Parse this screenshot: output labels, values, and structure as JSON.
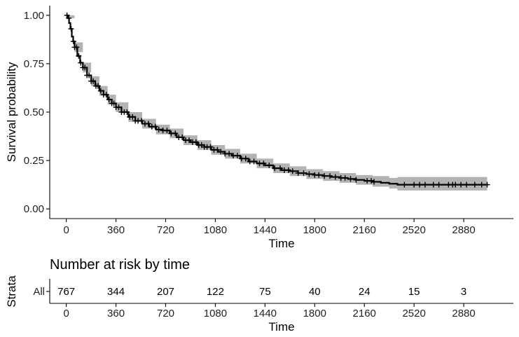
{
  "chart_data": {
    "type": "line",
    "subtype": "kaplan-meier",
    "xlabel": "Time",
    "ylabel": "Survival probability",
    "xlim": [
      -120,
      3240
    ],
    "ylim": [
      -0.05,
      1.05
    ],
    "x_ticks": [
      0,
      360,
      720,
      1080,
      1440,
      1800,
      2160,
      2520,
      2880
    ],
    "y_ticks": [
      0.0,
      0.25,
      0.5,
      0.75,
      1.0
    ],
    "y_tick_labels": [
      "0.00",
      "0.25",
      "0.50",
      "0.75",
      "1.00"
    ],
    "grid": false,
    "legend": "none",
    "line_color": "#000000",
    "ci_color": "#b3b3b3",
    "series": [
      {
        "points": [
          [
            0,
            1.0
          ],
          [
            10,
            0.985
          ],
          [
            20,
            0.96
          ],
          [
            30,
            0.93
          ],
          [
            40,
            0.89
          ],
          [
            50,
            0.865
          ],
          [
            60,
            0.835
          ],
          [
            80,
            0.79
          ],
          [
            100,
            0.755
          ],
          [
            120,
            0.73
          ],
          [
            150,
            0.69
          ],
          [
            180,
            0.66
          ],
          [
            210,
            0.635
          ],
          [
            240,
            0.61
          ],
          [
            270,
            0.59
          ],
          [
            300,
            0.565
          ],
          [
            330,
            0.545
          ],
          [
            360,
            0.525
          ],
          [
            400,
            0.5
          ],
          [
            450,
            0.475
          ],
          [
            500,
            0.455
          ],
          [
            550,
            0.44
          ],
          [
            600,
            0.425
          ],
          [
            650,
            0.41
          ],
          [
            700,
            0.405
          ],
          [
            750,
            0.39
          ],
          [
            800,
            0.37
          ],
          [
            850,
            0.355
          ],
          [
            900,
            0.345
          ],
          [
            950,
            0.33
          ],
          [
            1000,
            0.32
          ],
          [
            1050,
            0.305
          ],
          [
            1100,
            0.295
          ],
          [
            1150,
            0.285
          ],
          [
            1200,
            0.275
          ],
          [
            1260,
            0.26
          ],
          [
            1320,
            0.245
          ],
          [
            1380,
            0.235
          ],
          [
            1440,
            0.225
          ],
          [
            1500,
            0.21
          ],
          [
            1560,
            0.2
          ],
          [
            1620,
            0.195
          ],
          [
            1680,
            0.185
          ],
          [
            1740,
            0.18
          ],
          [
            1800,
            0.175
          ],
          [
            1860,
            0.17
          ],
          [
            1920,
            0.165
          ],
          [
            1980,
            0.16
          ],
          [
            2040,
            0.155
          ],
          [
            2100,
            0.15
          ],
          [
            2160,
            0.145
          ],
          [
            2220,
            0.14
          ],
          [
            2280,
            0.135
          ],
          [
            2340,
            0.13
          ],
          [
            2400,
            0.125
          ],
          [
            3050,
            0.125
          ]
        ],
        "ci_upper": [
          [
            0,
            1.0
          ],
          [
            60,
            0.86
          ],
          [
            120,
            0.755
          ],
          [
            180,
            0.685
          ],
          [
            240,
            0.635
          ],
          [
            300,
            0.59
          ],
          [
            360,
            0.55
          ],
          [
            450,
            0.5
          ],
          [
            550,
            0.465
          ],
          [
            650,
            0.435
          ],
          [
            750,
            0.415
          ],
          [
            850,
            0.38
          ],
          [
            950,
            0.355
          ],
          [
            1050,
            0.33
          ],
          [
            1150,
            0.31
          ],
          [
            1260,
            0.285
          ],
          [
            1380,
            0.26
          ],
          [
            1500,
            0.235
          ],
          [
            1620,
            0.22
          ],
          [
            1740,
            0.205
          ],
          [
            1860,
            0.195
          ],
          [
            1980,
            0.185
          ],
          [
            2100,
            0.175
          ],
          [
            2220,
            0.17
          ],
          [
            2340,
            0.16
          ],
          [
            2400,
            0.165
          ],
          [
            3050,
            0.165
          ]
        ],
        "ci_lower": [
          [
            0,
            0.985
          ],
          [
            60,
            0.81
          ],
          [
            120,
            0.705
          ],
          [
            180,
            0.635
          ],
          [
            240,
            0.585
          ],
          [
            300,
            0.54
          ],
          [
            360,
            0.5
          ],
          [
            450,
            0.45
          ],
          [
            550,
            0.415
          ],
          [
            650,
            0.385
          ],
          [
            750,
            0.365
          ],
          [
            850,
            0.33
          ],
          [
            950,
            0.305
          ],
          [
            1050,
            0.28
          ],
          [
            1150,
            0.26
          ],
          [
            1260,
            0.235
          ],
          [
            1380,
            0.21
          ],
          [
            1500,
            0.185
          ],
          [
            1620,
            0.17
          ],
          [
            1740,
            0.155
          ],
          [
            1860,
            0.145
          ],
          [
            1980,
            0.135
          ],
          [
            2100,
            0.125
          ],
          [
            2220,
            0.115
          ],
          [
            2340,
            0.105
          ],
          [
            2400,
            0.095
          ],
          [
            3050,
            0.095
          ]
        ],
        "censor_times": [
          5,
          18,
          35,
          52,
          60,
          75,
          90,
          105,
          120,
          135,
          150,
          165,
          180,
          195,
          215,
          230,
          250,
          270,
          290,
          310,
          330,
          345,
          360,
          380,
          400,
          420,
          440,
          460,
          480,
          500,
          520,
          545,
          570,
          595,
          620,
          645,
          670,
          700,
          730,
          760,
          790,
          815,
          840,
          865,
          890,
          915,
          940,
          960,
          980,
          1000,
          1020,
          1045,
          1070,
          1095,
          1120,
          1150,
          1180,
          1210,
          1240,
          1270,
          1300,
          1330,
          1360,
          1400,
          1430,
          1470,
          1510,
          1550,
          1580,
          1610,
          1640,
          1680,
          1720,
          1760,
          1800,
          1830,
          1870,
          1910,
          1950,
          1990,
          2020,
          2060,
          2100,
          2180,
          2210,
          2230,
          2450,
          2520,
          2560,
          2600,
          2660,
          2700,
          2770,
          2800,
          2820,
          2860,
          2900,
          2960,
          3010,
          3050
        ]
      }
    ]
  },
  "risk_table": {
    "title": "Number at risk by time",
    "ylabel": "Strata",
    "strata_label": "All",
    "xlabel": "Time",
    "times": [
      0,
      360,
      720,
      1080,
      1440,
      1800,
      2160,
      2520,
      2880
    ],
    "tick_labels": [
      "0",
      "360",
      "720",
      "1080",
      "1440",
      "1800",
      "2160",
      "2520",
      "2880"
    ],
    "counts": [
      "767",
      "344",
      "207",
      "122",
      "75",
      "40",
      "24",
      "15",
      "3"
    ]
  }
}
